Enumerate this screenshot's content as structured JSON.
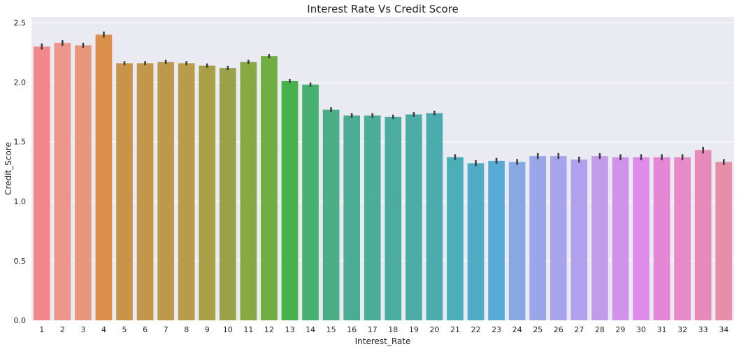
{
  "chart_data": {
    "type": "bar",
    "title": "Interest Rate Vs Credit Score",
    "xlabel": "Interest_Rate",
    "ylabel": "Credit_Score",
    "ylim": [
      0,
      2.55
    ],
    "yticks": [
      "0.0",
      "0.5",
      "1.0",
      "1.5",
      "2.0",
      "2.5"
    ],
    "ytick_values": [
      0,
      0.5,
      1.0,
      1.5,
      2.0,
      2.5
    ],
    "grid": true,
    "background_color": "#eaeaf2",
    "grid_color": "#ffffff",
    "errorbar_color": "#3f3f3f",
    "categories": [
      "1",
      "2",
      "3",
      "4",
      "5",
      "6",
      "7",
      "8",
      "9",
      "10",
      "11",
      "12",
      "13",
      "14",
      "15",
      "16",
      "17",
      "18",
      "19",
      "20",
      "21",
      "22",
      "23",
      "24",
      "25",
      "26",
      "27",
      "28",
      "29",
      "30",
      "31",
      "32",
      "33",
      "34"
    ],
    "values": [
      2.3,
      2.33,
      2.31,
      2.4,
      2.16,
      2.16,
      2.17,
      2.16,
      2.14,
      2.12,
      2.17,
      2.22,
      2.01,
      1.98,
      1.77,
      1.72,
      1.72,
      1.71,
      1.73,
      1.74,
      1.37,
      1.32,
      1.34,
      1.33,
      1.38,
      1.38,
      1.35,
      1.38,
      1.37,
      1.37,
      1.37,
      1.37,
      1.43,
      1.33
    ],
    "errors": [
      0.025,
      0.025,
      0.022,
      0.025,
      0.018,
      0.018,
      0.018,
      0.018,
      0.018,
      0.018,
      0.018,
      0.018,
      0.017,
      0.018,
      0.02,
      0.02,
      0.02,
      0.018,
      0.02,
      0.02,
      0.025,
      0.025,
      0.025,
      0.025,
      0.025,
      0.025,
      0.025,
      0.025,
      0.025,
      0.025,
      0.025,
      0.025,
      0.028,
      0.025
    ],
    "colors": [
      "#f0888e",
      "#ec958a",
      "#e8977b",
      "#db8f4b",
      "#c79449",
      "#c3974a",
      "#bf994b",
      "#b89b4b",
      "#a89f47",
      "#9aa247",
      "#86a944",
      "#72ad44",
      "#47b24c",
      "#48b172",
      "#4aae88",
      "#4aad93",
      "#4aae9a",
      "#4aad9f",
      "#4bada6",
      "#4aacac",
      "#4caeb8",
      "#4facc4",
      "#57a9d6",
      "#88a8e4",
      "#9aa6ea",
      "#a8a4ec",
      "#b2a0ec",
      "#c39ce9",
      "#d093e9",
      "#dd8ce8",
      "#e488d6",
      "#e68ac9",
      "#e88ab9",
      "#e68da8"
    ]
  }
}
